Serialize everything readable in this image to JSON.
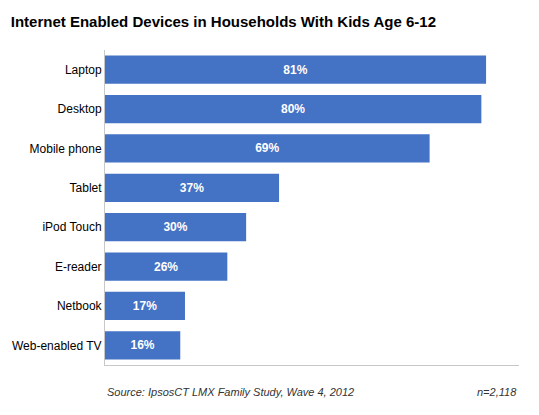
{
  "chart_data": {
    "type": "bar",
    "orientation": "horizontal",
    "title": "Internet Enabled Devices in Households With Kids Age 6-12",
    "categories": [
      "Web-enabled TV",
      "Netbook",
      "E-reader",
      "iPod Touch",
      "Tablet",
      "Mobile phone",
      "Desktop",
      "Laptop"
    ],
    "values": [
      16,
      17,
      26,
      30,
      37,
      69,
      80,
      81
    ],
    "value_labels": [
      "16%",
      "17%",
      "26%",
      "30%",
      "37%",
      "69%",
      "80%",
      "81%"
    ],
    "data_labels": true,
    "color": "#4472C4",
    "xlim": [
      0,
      88
    ],
    "xticks": [],
    "grid": false,
    "tick_labels": "y",
    "annotations": [
      "Source: IpsosCT LMX Family Study, Wave 4, 2012",
      "n=2,118"
    ]
  }
}
